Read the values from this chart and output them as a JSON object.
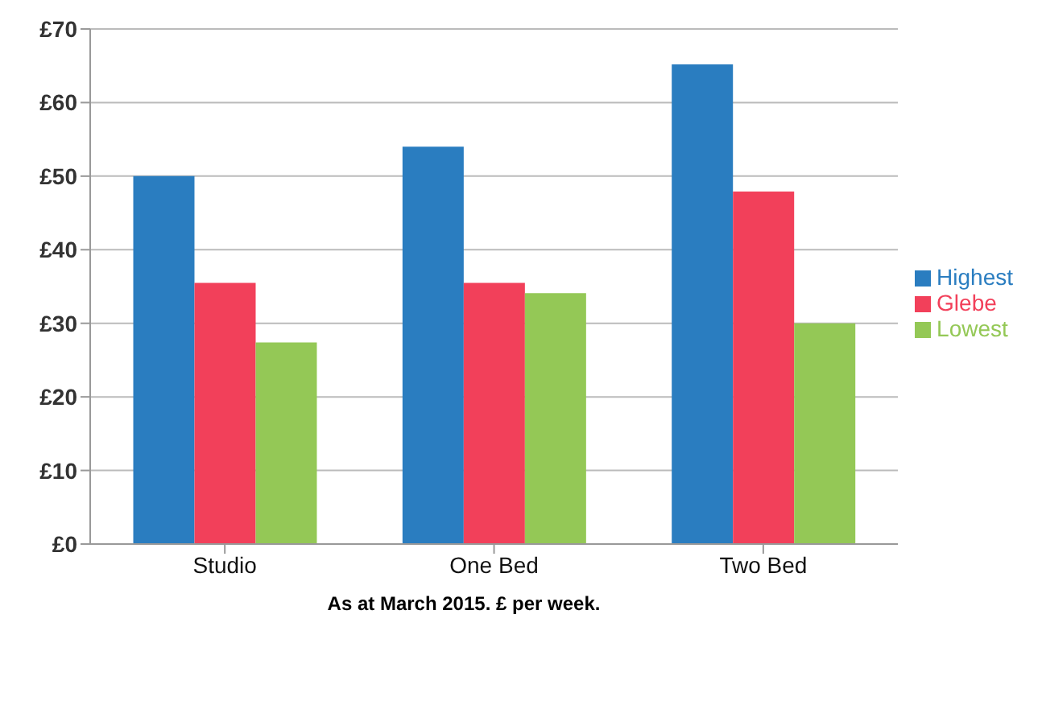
{
  "chart_data": {
    "type": "bar",
    "categories": [
      "Studio",
      "One Bed",
      "Two Bed"
    ],
    "series": [
      {
        "name": "Highest",
        "color": "#2a7dc0",
        "values": [
          50,
          54,
          65.2
        ]
      },
      {
        "name": "Glebe",
        "color": "#f2405a",
        "values": [
          35.5,
          35.5,
          47.9
        ]
      },
      {
        "name": "Lowest",
        "color": "#94c856",
        "values": [
          27.4,
          34.1,
          30
        ]
      }
    ],
    "ylim": [
      0,
      70
    ],
    "yticks": [
      {
        "value": 0,
        "label": "£0"
      },
      {
        "value": 10,
        "label": "£10"
      },
      {
        "value": 20,
        "label": "£20"
      },
      {
        "value": 30,
        "label": "£30"
      },
      {
        "value": 40,
        "label": "£40"
      },
      {
        "value": 50,
        "label": "£50"
      },
      {
        "value": 60,
        "label": "£60"
      },
      {
        "value": 70,
        "label": "£70"
      }
    ],
    "grid": "y",
    "legend": "right",
    "annotations": [
      "As at March 2015. £ per week."
    ]
  }
}
